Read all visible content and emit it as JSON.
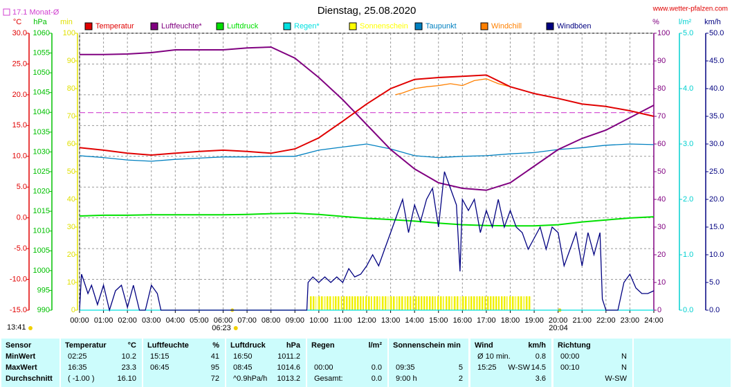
{
  "chart_data": {
    "type": "line",
    "title": "Dienstag, 25.08.2020",
    "source": "www.wetter-pfalzen.com",
    "grid": true,
    "xlim": [
      0,
      24
    ],
    "xticks": [
      {
        "value": 0,
        "label": "00:00"
      },
      {
        "value": 1,
        "label": "01:00"
      },
      {
        "value": 2,
        "label": "02:00"
      },
      {
        "value": 3,
        "label": "03:00"
      },
      {
        "value": 4,
        "label": "04:00"
      },
      {
        "value": 5,
        "label": "05:00"
      },
      {
        "value": 6,
        "label": "06:00"
      },
      {
        "value": 7,
        "label": "07:00"
      },
      {
        "value": 8,
        "label": "08:00"
      },
      {
        "value": 9,
        "label": "09:00"
      },
      {
        "value": 10,
        "label": "10:00"
      },
      {
        "value": 11,
        "label": "11:00"
      },
      {
        "value": 12,
        "label": "12:00"
      },
      {
        "value": 13,
        "label": "13:00"
      },
      {
        "value": 14,
        "label": "14:00"
      },
      {
        "value": 15,
        "label": "15:00"
      },
      {
        "value": 16,
        "label": "16:00"
      },
      {
        "value": 17,
        "label": "17:00"
      },
      {
        "value": 18,
        "label": "18:00"
      },
      {
        "value": 19,
        "label": "19:00"
      },
      {
        "value": 20,
        "label": "20:00"
      },
      {
        "value": 21,
        "label": "21:00"
      },
      {
        "value": 22,
        "label": "22:00"
      },
      {
        "value": 23,
        "label": "23:00"
      },
      {
        "value": 24,
        "label": "24:00"
      }
    ],
    "axes": [
      {
        "unit": "°C",
        "color": "#e00000",
        "lim": [
          -15,
          30
        ],
        "ticks": [
          {
            "value": -15,
            "label": "-15.0"
          },
          {
            "value": -10,
            "label": "-10.0"
          },
          {
            "value": -5,
            "label": "-5.0"
          },
          {
            "value": 0,
            "label": "0.0"
          },
          {
            "value": 5,
            "label": "5.0"
          },
          {
            "value": 10,
            "label": "10.0"
          },
          {
            "value": 15,
            "label": "15.0"
          },
          {
            "value": 20,
            "label": "20.0"
          },
          {
            "value": 25,
            "label": "25.0"
          },
          {
            "value": 30,
            "label": "30.0"
          }
        ]
      },
      {
        "unit": "hPa",
        "color": "#00c000",
        "lim": [
          990,
          1060
        ],
        "ticks": [
          990,
          995,
          1000,
          1005,
          1010,
          1015,
          1020,
          1025,
          1030,
          1035,
          1040,
          1045,
          1050,
          1055,
          1060
        ]
      },
      {
        "unit": "min",
        "color": "#e0e000",
        "lim": [
          0,
          100
        ],
        "ticks": [
          0,
          10,
          20,
          30,
          40,
          50,
          60,
          70,
          80,
          90,
          100
        ]
      },
      {
        "unit": "%",
        "color": "#800080",
        "lim": [
          0,
          100
        ],
        "ticks": [
          0,
          10,
          20,
          30,
          40,
          50,
          60,
          70,
          80,
          90,
          100
        ]
      },
      {
        "unit": "l/m²",
        "color": "#00d0d0",
        "lim": [
          0,
          5
        ],
        "ticks": [
          {
            "value": 0,
            "label": "0.0"
          },
          {
            "value": 1,
            "label": "1.0"
          },
          {
            "value": 2,
            "label": "2.0"
          },
          {
            "value": 3,
            "label": "3.0"
          },
          {
            "value": 4,
            "label": "4.0"
          },
          {
            "value": 5,
            "label": "5.0"
          }
        ]
      },
      {
        "unit": "km/h",
        "color": "#000080",
        "lim": [
          0,
          50
        ],
        "ticks": [
          {
            "value": 0,
            "label": "0.0"
          },
          {
            "value": 5,
            "label": "5.0"
          },
          {
            "value": 10,
            "label": "10.0"
          },
          {
            "value": 15,
            "label": "15.0"
          },
          {
            "value": 20,
            "label": "20.0"
          },
          {
            "value": 25,
            "label": "25.0"
          },
          {
            "value": 30,
            "label": "30.0"
          },
          {
            "value": 35,
            "label": "35.0"
          },
          {
            "value": 40,
            "label": "40.0"
          },
          {
            "value": 45,
            "label": "45.0"
          },
          {
            "value": 50,
            "label": "50.0"
          }
        ]
      }
    ],
    "monthly_avg": {
      "label": "17.1 Monat-Ø",
      "value": 17.1,
      "axis": 0,
      "color": "#d040d0"
    },
    "sun": {
      "daylength": "13:41",
      "sunrise": {
        "value": 6.383,
        "label": "06:23"
      },
      "sunset": {
        "value": 20.067,
        "label": "20:04"
      }
    },
    "series": [
      {
        "name": "Temperatur",
        "color": "#e00000",
        "axis": 0,
        "kind": "line",
        "x": [
          0,
          1,
          2,
          3,
          4,
          5,
          6,
          7,
          8,
          9,
          10,
          11,
          12,
          13,
          14,
          15,
          16,
          17,
          18,
          19,
          20,
          21,
          22,
          23,
          24
        ],
        "values": [
          11.4,
          11.0,
          10.5,
          10.2,
          10.5,
          10.8,
          11.0,
          10.8,
          10.5,
          11.2,
          13.0,
          15.7,
          18.5,
          21.0,
          22.5,
          22.8,
          23.0,
          23.2,
          21.3,
          20.2,
          19.4,
          18.5,
          18.1,
          17.4,
          16.5
        ]
      },
      {
        "name": "Luftfeuchte*",
        "color": "#800080",
        "axis": 3,
        "kind": "line",
        "x": [
          0,
          1,
          2,
          3,
          4,
          5,
          6,
          7,
          8,
          9,
          10,
          11,
          12,
          13,
          14,
          15,
          16,
          17,
          18,
          19,
          20,
          21,
          22,
          23,
          24
        ],
        "values": [
          92.3,
          92.3,
          92.5,
          93,
          94,
          94,
          94,
          94.7,
          95,
          91,
          84,
          76,
          67,
          58,
          51,
          46,
          44,
          43.3,
          46,
          52,
          58,
          62,
          65,
          69.5,
          74
        ]
      },
      {
        "name": "Luftdruck",
        "color": "#00e000",
        "axis": 1,
        "kind": "line",
        "x": [
          0,
          1,
          2,
          3,
          4,
          5,
          6,
          7,
          8,
          9,
          10,
          11,
          12,
          13,
          14,
          15,
          16,
          17,
          18,
          19,
          20,
          21,
          22,
          23,
          24
        ],
        "values": [
          1013.8,
          1014.0,
          1014.0,
          1014.1,
          1014.1,
          1014.1,
          1014.1,
          1014.2,
          1014.4,
          1014.5,
          1014.2,
          1013.7,
          1013.2,
          1012.9,
          1012.5,
          1012.0,
          1011.6,
          1011.4,
          1011.3,
          1011.3,
          1011.6,
          1012.3,
          1012.8,
          1013.3,
          1013.6
        ]
      },
      {
        "name": "Regen*",
        "color": "#00e0e0",
        "axis": 4,
        "kind": "line",
        "x": [
          0,
          24
        ],
        "values": [
          0,
          0
        ]
      },
      {
        "name": "Sonnenschein",
        "color": "#ffff00",
        "axis": 2,
        "kind": "bar",
        "x": [
          9.58,
          9.92,
          10.25,
          10.58,
          10.92,
          11.25,
          11.58,
          11.92,
          12.25,
          12.58,
          12.92,
          13.25,
          13.58,
          13.92,
          14.25,
          14.58,
          14.92,
          15.25,
          15.58,
          15.92,
          16.25,
          16.58,
          16.92,
          17.25,
          17.58,
          17.92,
          18.25,
          18.58
        ],
        "values": [
          5,
          5,
          5,
          5,
          5,
          5,
          5,
          5,
          5,
          5,
          5,
          5,
          5,
          5,
          5,
          5,
          5,
          5,
          5,
          5,
          5,
          5,
          5,
          5,
          5,
          5,
          5,
          5
        ]
      },
      {
        "name": "Taupunkt",
        "color": "#0080c0",
        "axis": 0,
        "kind": "line",
        "x": [
          0,
          1,
          2,
          3,
          4,
          5,
          6,
          7,
          8,
          9,
          10,
          11,
          12,
          13,
          14,
          15,
          16,
          17,
          18,
          19,
          20,
          21,
          22,
          23,
          24
        ],
        "values": [
          10.1,
          9.8,
          9.4,
          9.2,
          9.5,
          9.7,
          9.9,
          9.9,
          10.0,
          10.0,
          11.0,
          11.5,
          12.0,
          11.2,
          10.1,
          9.8,
          10.0,
          10.1,
          10.4,
          10.6,
          11.1,
          11.4,
          11.8,
          12.0,
          11.9
        ]
      },
      {
        "name": "Windchill",
        "color": "#ff8000",
        "axis": 0,
        "kind": "line",
        "x": [
          13.2,
          13.5,
          14,
          14.5,
          15,
          15.5,
          16,
          16.5,
          17,
          17.5,
          18
        ],
        "values": [
          20.0,
          20.3,
          21.0,
          21.3,
          21.5,
          21.8,
          21.5,
          22.3,
          22.6,
          21.8,
          21.3
        ]
      },
      {
        "name": "Windböen",
        "color": "#000080",
        "axis": 5,
        "kind": "line",
        "x": [
          0,
          0.08,
          0.2,
          0.35,
          0.5,
          0.75,
          1,
          1.25,
          1.5,
          1.75,
          2,
          2.25,
          2.5,
          2.75,
          3,
          3.25,
          3.4,
          9.5,
          9.55,
          9.75,
          10,
          10.25,
          10.5,
          10.75,
          11,
          11.25,
          11.5,
          11.75,
          12,
          12.25,
          12.5,
          12.75,
          13,
          13.25,
          13.5,
          13.75,
          14,
          14.25,
          14.5,
          14.75,
          15,
          15.25,
          15.5,
          15.75,
          15.9,
          16,
          16.25,
          16.5,
          16.75,
          17,
          17.25,
          17.5,
          17.75,
          18,
          18.25,
          18.5,
          18.75,
          19,
          19.25,
          19.5,
          19.75,
          20,
          20.25,
          20.5,
          20.75,
          21,
          21.25,
          21.5,
          21.75,
          21.85,
          22,
          22.5,
          22.75,
          23,
          23.25,
          23.5,
          23.75,
          24
        ],
        "values": [
          0,
          6.5,
          5,
          3,
          4.5,
          1,
          4.5,
          0,
          3.5,
          4.5,
          0.5,
          4.5,
          0,
          0,
          4.5,
          3,
          0,
          0,
          5,
          6,
          5,
          6,
          5,
          6,
          5,
          7.5,
          6,
          6.5,
          8,
          10,
          8,
          11,
          14,
          17,
          20,
          14,
          19,
          16,
          20,
          22,
          15,
          25,
          22,
          19,
          7,
          20,
          18,
          20,
          14,
          18,
          15,
          20,
          15,
          18,
          15,
          14,
          11,
          13,
          15,
          11,
          15,
          14,
          8,
          11,
          14,
          8,
          14,
          10,
          14,
          2,
          0,
          0,
          5,
          6.5,
          4,
          3,
          3,
          3.5
        ]
      }
    ]
  },
  "table": {
    "header": [
      [
        "Sensor"
      ],
      [
        "Temperatur",
        "°C"
      ],
      [
        "Luftfeuchte",
        "%"
      ],
      [
        "Luftdruck",
        "hPa"
      ],
      [
        "Regen",
        "l/m²"
      ],
      [
        "Sonnenschein min"
      ],
      [
        "Wind",
        "km/h"
      ],
      [
        "Richtung"
      ]
    ],
    "rows": [
      [
        [
          "MinWert"
        ],
        [
          "02:25",
          "10.2"
        ],
        [
          "15:15",
          "41"
        ],
        [
          "16:50",
          "1011.2"
        ],
        [],
        [],
        [
          "Ø 10 min.",
          "0.8"
        ],
        [
          "00:00",
          "N"
        ]
      ],
      [
        [
          "MaxWert"
        ],
        [
          "16:35",
          "23.3"
        ],
        [
          "06:45",
          "95"
        ],
        [
          "08:45",
          "1014.6"
        ],
        [
          "00:00",
          "0.0"
        ],
        [
          "09:35",
          "5"
        ],
        [
          "15:25",
          "W-SW",
          "14.5"
        ],
        [
          "00:10",
          "N"
        ]
      ],
      [
        [
          "Durchschnitt"
        ],
        [
          "( -1.00 )",
          "16.10"
        ],
        [
          "72"
        ],
        [
          "^0.9hPa/h",
          "1013.2"
        ],
        [
          "Gesamt:",
          "0.0"
        ],
        [
          "9:00 h",
          "2"
        ],
        [
          "3.6"
        ],
        [
          "W-SW"
        ]
      ]
    ]
  }
}
